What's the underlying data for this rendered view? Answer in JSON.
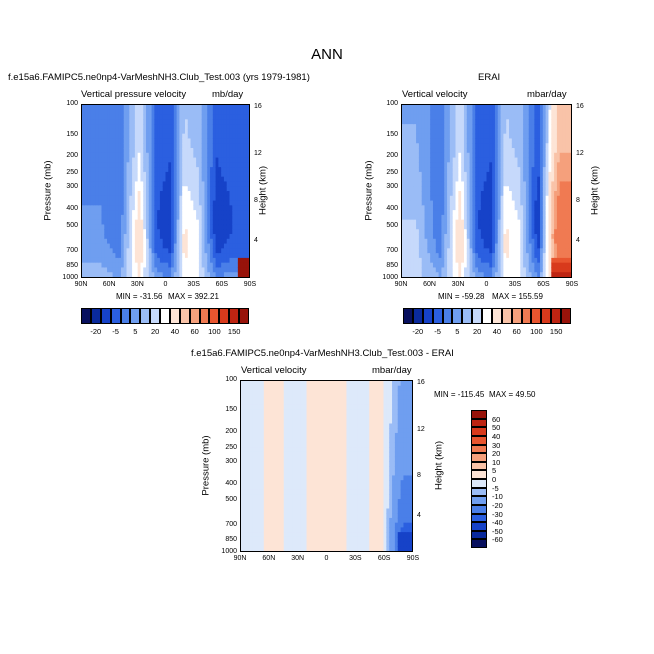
{
  "page": {
    "title": "ANN"
  },
  "panels": {
    "model": {
      "case_title": "f.e15a6.FAMIPC5.ne0np4-VarMeshNH3.Club_Test.003 (yrs 1979-1981)",
      "var_label": "Vertical pressure velocity",
      "units": "mb/day",
      "min_text": "MIN = -31.56",
      "max_text": "MAX = 392.21"
    },
    "obs": {
      "case_title": "ERAI",
      "var_label": "Vertical velocity",
      "units": "mbar/day",
      "min_text": "MIN = -59.28",
      "max_text": "MAX = 155.59"
    },
    "diff": {
      "case_title": "f.e15a6.FAMIPC5.ne0np4-VarMeshNH3.Club_Test.003 - ERAI",
      "var_label": "Vertical velocity",
      "units": "mbar/day",
      "min_text": "MIN = -115.45",
      "max_text": "MAX =  49.50"
    }
  },
  "axes": {
    "ylabel": "Pressure (mb)",
    "ylabel_right": "Height (km)",
    "y_ticks": [
      "100",
      "150",
      "200",
      "250",
      "300",
      "400",
      "500",
      "700",
      "850",
      "1000"
    ],
    "y_right_ticks": [
      "16",
      "12",
      "8",
      "4"
    ],
    "x_ticks": [
      "90N",
      "60N",
      "30N",
      "0",
      "30S",
      "60S",
      "90S"
    ]
  },
  "colorbars": {
    "fields": {
      "labels": [
        "-20",
        "-5",
        "5",
        "20",
        "40",
        "60",
        "100",
        "150"
      ],
      "colors": [
        "#08105e",
        "#0a2a9c",
        "#1642c8",
        "#2b5fe0",
        "#4a7fe8",
        "#6f9ef0",
        "#9abcf6",
        "#c6d9fb",
        "#ffffff",
        "#fde4d6",
        "#f9c3a8",
        "#f5a07c",
        "#f07a52",
        "#e8552f",
        "#d83a1c",
        "#bd2412",
        "#98130a"
      ]
    },
    "diff": {
      "labels": [
        "60",
        "50",
        "40",
        "30",
        "20",
        "10",
        "5",
        "0",
        "-5",
        "-10",
        "-20",
        "-30",
        "-40",
        "-50",
        "-60"
      ],
      "colors": [
        "#98130a",
        "#bd2412",
        "#d83a1c",
        "#e8552f",
        "#f07a52",
        "#f5a07c",
        "#f9c3a8",
        "#fde4d6",
        "#dde9fa",
        "#9abcf6",
        "#6f9ef0",
        "#4a7fe8",
        "#2b5fe0",
        "#1642c8",
        "#0a2a9c",
        "#08105e"
      ]
    }
  },
  "chart_data": [
    {
      "type": "heatmap",
      "title": "f.e15a6.FAMIPC5.ne0np4-VarMeshNH3.Club_Test.003 (yrs 1979-1981)",
      "variable": "Vertical pressure velocity",
      "units": "mb/day",
      "xlabel": "",
      "ylabel": "Pressure (mb)",
      "ylabel_right": "Height (km)",
      "x_ticks": [
        "90N",
        "60N",
        "30N",
        "0",
        "30S",
        "60S",
        "90S"
      ],
      "ylim": [
        1000,
        100
      ],
      "y_scale": "log",
      "min": -31.56,
      "max": 392.21,
      "pattern": [
        {
          "lat": -75,
          "value": -15
        },
        {
          "lat": -55,
          "value": -20
        },
        {
          "lat": -35,
          "value": 10
        },
        {
          "lat": -20,
          "value": 15
        },
        {
          "lat": -5,
          "value": -20
        },
        {
          "lat": 10,
          "value": -15
        },
        {
          "lat": 28,
          "value": 20
        },
        {
          "lat": 50,
          "value": -10
        },
        {
          "lat": 70,
          "value": -5
        }
      ]
    },
    {
      "type": "heatmap",
      "title": "ERAI",
      "variable": "Vertical velocity",
      "units": "mbar/day",
      "xlabel": "",
      "ylabel": "Pressure (mb)",
      "ylabel_right": "Height (km)",
      "x_ticks": [
        "90N",
        "60N",
        "30N",
        "0",
        "30S",
        "60S",
        "90S"
      ],
      "ylim": [
        1000,
        100
      ],
      "y_scale": "log",
      "min": -59.28,
      "max": 155.59,
      "pattern": [
        {
          "lat": -78,
          "value": 60
        },
        {
          "lat": -55,
          "value": -20
        },
        {
          "lat": -35,
          "value": 10
        },
        {
          "lat": -20,
          "value": 15
        },
        {
          "lat": -5,
          "value": -20
        },
        {
          "lat": 10,
          "value": -15
        },
        {
          "lat": 28,
          "value": 20
        },
        {
          "lat": 50,
          "value": -10
        },
        {
          "lat": 75,
          "value": 5
        }
      ]
    },
    {
      "type": "heatmap",
      "title": "f.e15a6.FAMIPC5.ne0np4-VarMeshNH3.Club_Test.003 - ERAI",
      "variable": "Vertical velocity",
      "units": "mbar/day",
      "xlabel": "",
      "ylabel": "Pressure (mb)",
      "ylabel_right": "Height (km)",
      "x_ticks": [
        "90N",
        "60N",
        "30N",
        "0",
        "30S",
        "60S",
        "90S"
      ],
      "ylim": [
        1000,
        100
      ],
      "y_scale": "log",
      "min": -115.45,
      "max": 49.5,
      "pattern": [
        {
          "lat": -80,
          "value": -40
        },
        {
          "lat": -60,
          "value": 2
        },
        {
          "lat": -30,
          "value": -2
        },
        {
          "lat": 0,
          "value": 5
        },
        {
          "lat": 30,
          "value": -2
        },
        {
          "lat": 60,
          "value": 2
        },
        {
          "lat": 85,
          "value": -5
        }
      ]
    }
  ]
}
